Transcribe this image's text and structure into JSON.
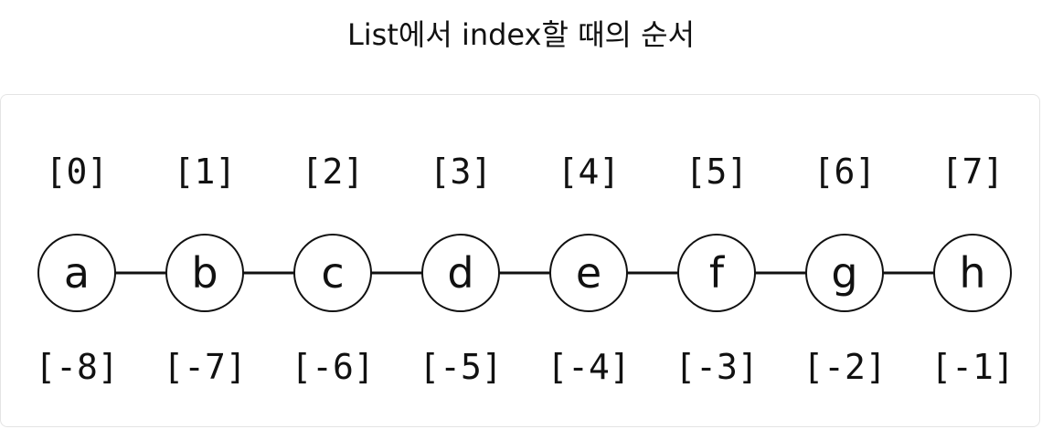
{
  "title": "List에서 index할 때의 순서",
  "nodes": [
    {
      "label": "a",
      "pos_index": "[0]",
      "neg_index": "[-8]"
    },
    {
      "label": "b",
      "pos_index": "[1]",
      "neg_index": "[-7]"
    },
    {
      "label": "c",
      "pos_index": "[2]",
      "neg_index": "[-6]"
    },
    {
      "label": "d",
      "pos_index": "[3]",
      "neg_index": "[-5]"
    },
    {
      "label": "e",
      "pos_index": "[4]",
      "neg_index": "[-4]"
    },
    {
      "label": "f",
      "pos_index": "[5]",
      "neg_index": "[-3]"
    },
    {
      "label": "g",
      "pos_index": "[6]",
      "neg_index": "[-2]"
    },
    {
      "label": "h",
      "pos_index": "[7]",
      "neg_index": "[-1]"
    }
  ]
}
